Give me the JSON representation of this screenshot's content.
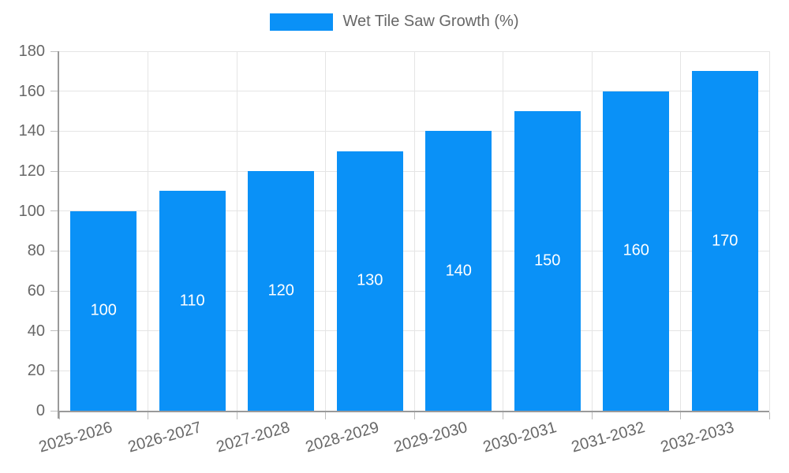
{
  "legend": {
    "label": "Wet Tile Saw Growth (%)"
  },
  "chart_data": {
    "type": "bar",
    "title": "",
    "categories": [
      "2025-2026",
      "2026-2027",
      "2027-2028",
      "2028-2029",
      "2029-2030",
      "2030-2031",
      "2031-2032",
      "2032-2033"
    ],
    "series": [
      {
        "name": "Wet Tile Saw Growth (%)",
        "values": [
          100,
          110,
          120,
          130,
          140,
          150,
          160,
          170
        ]
      }
    ],
    "xlabel": "",
    "ylabel": "",
    "ylim": [
      0,
      180
    ],
    "yticks": [
      0,
      20,
      40,
      60,
      80,
      100,
      120,
      140,
      160,
      180
    ],
    "grid": true,
    "legend_position": "top",
    "value_label_position": "inside-center",
    "colors": {
      "bar": "#0a91f7",
      "value_label": "#ffffff",
      "axis_text": "#676767",
      "grid_line": "#e5e5e5",
      "axis_line": "#9a9a9a",
      "tick_mark": "#bdbdbd",
      "background": "#ffffff"
    }
  }
}
